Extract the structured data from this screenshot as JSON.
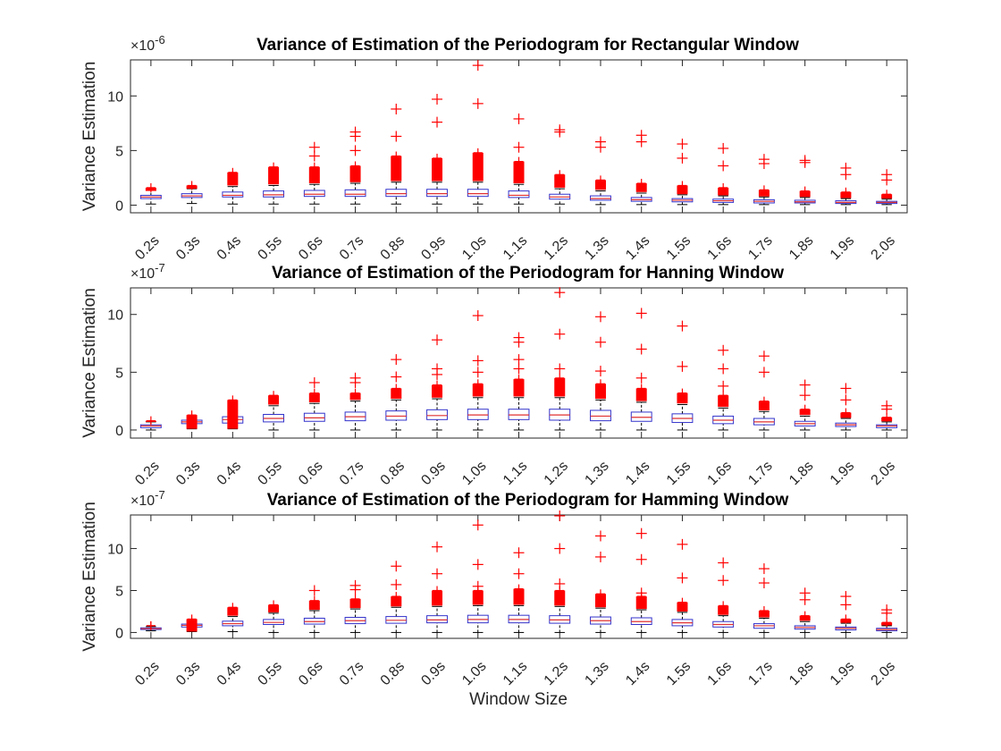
{
  "figure": {
    "xlabel": "Window Size"
  },
  "colors": {
    "box": "#3333cc",
    "median": "#e03030",
    "whisker": "#000000",
    "outlier": "#ff0000"
  },
  "chart_data": [
    {
      "type": "box",
      "title": "Variance of Estimation of the Periodogram for Rectangular Window",
      "ylabel": "Variance Estimation",
      "exponent_prefix": "×10",
      "exponent": "-6",
      "ylim": [
        -0.7,
        13.3
      ],
      "yticks": [
        0,
        5,
        10
      ],
      "categories": [
        "0.2s",
        "0.3s",
        "0.4s",
        "0.5s",
        "0.6s",
        "0.7s",
        "0.8s",
        "0.9s",
        "1.0s",
        "1.1s",
        "1.2s",
        "1.3s",
        "1.4s",
        "1.5s",
        "1.6s",
        "1.7s",
        "1.8s",
        "1.9s",
        "2.0s"
      ],
      "boxes": [
        {
          "low": 0.1,
          "q1": 0.6,
          "median": 0.75,
          "q3": 0.9,
          "high": 1.4,
          "outlier_top": 1.6,
          "outlier_bottom": 1.3,
          "extra": []
        },
        {
          "low": 0.15,
          "q1": 0.7,
          "median": 0.85,
          "q3": 1.05,
          "high": 1.5,
          "outlier_top": 1.8,
          "outlier_bottom": 1.5,
          "extra": []
        },
        {
          "low": 0.1,
          "q1": 0.75,
          "median": 0.9,
          "q3": 1.2,
          "high": 1.7,
          "outlier_top": 3.0,
          "outlier_bottom": 1.8,
          "extra": []
        },
        {
          "low": 0.1,
          "q1": 0.75,
          "median": 0.95,
          "q3": 1.3,
          "high": 1.8,
          "outlier_top": 3.5,
          "outlier_bottom": 1.9,
          "extra": []
        },
        {
          "low": 0.1,
          "q1": 0.8,
          "median": 1.0,
          "q3": 1.35,
          "high": 1.9,
          "outlier_top": 3.5,
          "outlier_bottom": 2.0,
          "extra": [
            5.3,
            4.5
          ]
        },
        {
          "low": 0.1,
          "q1": 0.8,
          "median": 1.0,
          "q3": 1.4,
          "high": 2.0,
          "outlier_top": 3.6,
          "outlier_bottom": 2.1,
          "extra": [
            6.7,
            6.3,
            5.0
          ]
        },
        {
          "low": 0.1,
          "q1": 0.8,
          "median": 1.05,
          "q3": 1.45,
          "high": 2.1,
          "outlier_top": 4.5,
          "outlier_bottom": 2.2,
          "extra": [
            8.8,
            6.3
          ]
        },
        {
          "low": 0.1,
          "q1": 0.8,
          "median": 1.05,
          "q3": 1.45,
          "high": 2.1,
          "outlier_top": 4.3,
          "outlier_bottom": 2.2,
          "extra": [
            9.7,
            7.6
          ]
        },
        {
          "low": 0.1,
          "q1": 0.8,
          "median": 1.05,
          "q3": 1.45,
          "high": 2.1,
          "outlier_top": 4.8,
          "outlier_bottom": 2.2,
          "extra": [
            12.8,
            9.3
          ]
        },
        {
          "low": 0.1,
          "q1": 0.7,
          "median": 0.9,
          "q3": 1.3,
          "high": 1.9,
          "outlier_top": 4.0,
          "outlier_bottom": 2.0,
          "extra": [
            7.9,
            5.3
          ]
        },
        {
          "low": 0.1,
          "q1": 0.55,
          "median": 0.75,
          "q3": 1.0,
          "high": 1.5,
          "outlier_top": 2.8,
          "outlier_bottom": 1.6,
          "extra": [
            6.9,
            6.7
          ]
        },
        {
          "low": 0.05,
          "q1": 0.45,
          "median": 0.6,
          "q3": 0.85,
          "high": 1.3,
          "outlier_top": 2.3,
          "outlier_bottom": 1.4,
          "extra": [
            5.8,
            5.3
          ]
        },
        {
          "low": 0.05,
          "q1": 0.35,
          "median": 0.5,
          "q3": 0.7,
          "high": 1.1,
          "outlier_top": 2.0,
          "outlier_bottom": 1.2,
          "extra": [
            6.4,
            5.8
          ]
        },
        {
          "low": 0.05,
          "q1": 0.3,
          "median": 0.45,
          "q3": 0.6,
          "high": 0.95,
          "outlier_top": 1.8,
          "outlier_bottom": 1.0,
          "extra": [
            5.6,
            4.3
          ]
        },
        {
          "low": 0.05,
          "q1": 0.25,
          "median": 0.4,
          "q3": 0.55,
          "high": 0.85,
          "outlier_top": 1.6,
          "outlier_bottom": 0.9,
          "extra": [
            5.2,
            3.6
          ]
        },
        {
          "low": 0.05,
          "q1": 0.2,
          "median": 0.35,
          "q3": 0.5,
          "high": 0.75,
          "outlier_top": 1.4,
          "outlier_bottom": 0.8,
          "extra": [
            4.2,
            3.8
          ]
        },
        {
          "low": 0.05,
          "q1": 0.2,
          "median": 0.3,
          "q3": 0.45,
          "high": 0.7,
          "outlier_top": 1.3,
          "outlier_bottom": 0.75,
          "extra": [
            4.1,
            3.9
          ]
        },
        {
          "low": 0.05,
          "q1": 0.15,
          "median": 0.25,
          "q3": 0.4,
          "high": 0.6,
          "outlier_top": 1.2,
          "outlier_bottom": 0.65,
          "extra": [
            3.4,
            2.8
          ]
        },
        {
          "low": 0.05,
          "q1": 0.15,
          "median": 0.25,
          "q3": 0.35,
          "high": 0.55,
          "outlier_top": 1.0,
          "outlier_bottom": 0.6,
          "extra": [
            2.8,
            2.3
          ]
        }
      ]
    },
    {
      "type": "box",
      "title": "Variance of Estimation of the Periodogram for Hanning Window",
      "ylabel": "Variance Estimation",
      "exponent_prefix": "×10",
      "exponent": "-7",
      "ylim": [
        -0.7,
        12.3
      ],
      "yticks": [
        0,
        5,
        10
      ],
      "categories": [
        "0.2s",
        "0.3s",
        "0.4s",
        "0.5s",
        "0.6s",
        "0.7s",
        "0.8s",
        "0.9s",
        "1.0s",
        "1.1s",
        "1.2s",
        "1.3s",
        "1.4s",
        "1.5s",
        "1.6s",
        "1.7s",
        "1.8s",
        "1.9s",
        "2.0s"
      ],
      "boxes": [
        {
          "low": 0.0,
          "q1": 0.2,
          "median": 0.35,
          "q3": 0.45,
          "high": 0.7,
          "outlier_top": 0.8,
          "outlier_bottom": 0.7,
          "extra": []
        },
        {
          "low": 0.1,
          "q1": 0.55,
          "median": 0.7,
          "q3": 0.85,
          "high": 1.1,
          "outlier_top": 1.3,
          "outlier_bottom": 0.1,
          "extra": []
        },
        {
          "low": 0.1,
          "q1": 0.6,
          "median": 0.9,
          "q3": 1.15,
          "high": 1.7,
          "outlier_top": 2.6,
          "outlier_bottom": 0.1,
          "extra": []
        },
        {
          "low": 0.0,
          "q1": 0.7,
          "median": 1.0,
          "q3": 1.35,
          "high": 2.1,
          "outlier_top": 3.0,
          "outlier_bottom": 2.2,
          "extra": []
        },
        {
          "low": 0.0,
          "q1": 0.75,
          "median": 1.05,
          "q3": 1.45,
          "high": 2.3,
          "outlier_top": 3.2,
          "outlier_bottom": 2.4,
          "extra": [
            4.1
          ]
        },
        {
          "low": 0.0,
          "q1": 0.8,
          "median": 1.15,
          "q3": 1.55,
          "high": 2.5,
          "outlier_top": 3.2,
          "outlier_bottom": 2.6,
          "extra": [
            4.5,
            4.1
          ]
        },
        {
          "low": 0.0,
          "q1": 0.85,
          "median": 1.2,
          "q3": 1.65,
          "high": 2.6,
          "outlier_top": 3.6,
          "outlier_bottom": 2.7,
          "extra": [
            6.1,
            4.6
          ]
        },
        {
          "low": 0.0,
          "q1": 0.9,
          "median": 1.25,
          "q3": 1.75,
          "high": 2.7,
          "outlier_top": 3.9,
          "outlier_bottom": 2.8,
          "extra": [
            7.8,
            5.3,
            4.8
          ]
        },
        {
          "low": 0.0,
          "q1": 0.9,
          "median": 1.3,
          "q3": 1.8,
          "high": 2.8,
          "outlier_top": 4.0,
          "outlier_bottom": 2.9,
          "extra": [
            9.9,
            6.0,
            5.0
          ]
        },
        {
          "low": 0.0,
          "q1": 0.9,
          "median": 1.3,
          "q3": 1.8,
          "high": 2.8,
          "outlier_top": 4.4,
          "outlier_bottom": 2.9,
          "extra": [
            8.0,
            7.6,
            6.1,
            5.3
          ]
        },
        {
          "low": 0.0,
          "q1": 0.85,
          "median": 1.3,
          "q3": 1.8,
          "high": 2.8,
          "outlier_top": 4.5,
          "outlier_bottom": 2.9,
          "extra": [
            11.9,
            8.3,
            5.3
          ]
        },
        {
          "low": 0.0,
          "q1": 0.8,
          "median": 1.2,
          "q3": 1.7,
          "high": 2.6,
          "outlier_top": 4.0,
          "outlier_bottom": 2.7,
          "extra": [
            9.8,
            7.6,
            5.1
          ]
        },
        {
          "low": 0.0,
          "q1": 0.75,
          "median": 1.1,
          "q3": 1.55,
          "high": 2.4,
          "outlier_top": 3.6,
          "outlier_bottom": 2.5,
          "extra": [
            10.1,
            7.0,
            4.5
          ]
        },
        {
          "low": 0.0,
          "q1": 0.65,
          "median": 1.0,
          "q3": 1.4,
          "high": 2.2,
          "outlier_top": 3.2,
          "outlier_bottom": 2.3,
          "extra": [
            9.0,
            5.5
          ]
        },
        {
          "low": 0.0,
          "q1": 0.55,
          "median": 0.85,
          "q3": 1.2,
          "high": 1.9,
          "outlier_top": 3.0,
          "outlier_bottom": 2.0,
          "extra": [
            6.9,
            5.3,
            3.8
          ]
        },
        {
          "low": 0.0,
          "q1": 0.45,
          "median": 0.7,
          "q3": 1.0,
          "high": 1.6,
          "outlier_top": 2.5,
          "outlier_bottom": 1.7,
          "extra": [
            6.4,
            5.0
          ]
        },
        {
          "low": 0.0,
          "q1": 0.35,
          "median": 0.55,
          "q3": 0.75,
          "high": 1.2,
          "outlier_top": 1.8,
          "outlier_bottom": 1.3,
          "extra": [
            3.9,
            3.0
          ]
        },
        {
          "low": 0.0,
          "q1": 0.3,
          "median": 0.45,
          "q3": 0.6,
          "high": 1.0,
          "outlier_top": 1.5,
          "outlier_bottom": 1.05,
          "extra": [
            3.6,
            2.6
          ]
        },
        {
          "low": 0.0,
          "q1": 0.2,
          "median": 0.35,
          "q3": 0.45,
          "high": 0.7,
          "outlier_top": 1.1,
          "outlier_bottom": 0.75,
          "extra": [
            2.1,
            1.8
          ]
        }
      ]
    },
    {
      "type": "box",
      "title": "Variance of Estimation of the Periodogram for Hamming Window",
      "ylabel": "Variance Estimation",
      "exponent_prefix": "×10",
      "exponent": "-7",
      "ylim": [
        -0.7,
        14.0
      ],
      "yticks": [
        0,
        5,
        10
      ],
      "categories": [
        "0.2s",
        "0.3s",
        "0.4s",
        "0.5s",
        "0.6s",
        "0.7s",
        "0.8s",
        "0.9s",
        "1.0s",
        "1.1s",
        "1.2s",
        "1.3s",
        "1.4s",
        "1.5s",
        "1.6s",
        "1.7s",
        "1.8s",
        "1.9s",
        "2.0s"
      ],
      "boxes": [
        {
          "low": 0.2,
          "q1": 0.35,
          "median": 0.45,
          "q3": 0.55,
          "high": 0.7,
          "outlier_top": 0.8,
          "outlier_bottom": 0.75,
          "extra": []
        },
        {
          "low": 0.1,
          "q1": 0.65,
          "median": 0.85,
          "q3": 1.0,
          "high": 1.4,
          "outlier_top": 1.6,
          "outlier_bottom": 0.1,
          "extra": []
        },
        {
          "low": 0.1,
          "q1": 0.8,
          "median": 1.05,
          "q3": 1.35,
          "high": 1.9,
          "outlier_top": 3.0,
          "outlier_bottom": 2.0,
          "extra": []
        },
        {
          "low": 0.0,
          "q1": 0.95,
          "median": 1.2,
          "q3": 1.55,
          "high": 2.3,
          "outlier_top": 3.3,
          "outlier_bottom": 2.4,
          "extra": []
        },
        {
          "low": 0.0,
          "q1": 1.0,
          "median": 1.3,
          "q3": 1.7,
          "high": 2.6,
          "outlier_top": 3.8,
          "outlier_bottom": 2.7,
          "extra": [
            5.0
          ]
        },
        {
          "low": 0.0,
          "q1": 1.05,
          "median": 1.4,
          "q3": 1.8,
          "high": 2.8,
          "outlier_top": 4.0,
          "outlier_bottom": 2.9,
          "extra": [
            5.6,
            5.1
          ]
        },
        {
          "low": 0.0,
          "q1": 1.1,
          "median": 1.45,
          "q3": 1.9,
          "high": 3.0,
          "outlier_top": 4.3,
          "outlier_bottom": 3.1,
          "extra": [
            7.9,
            5.7
          ]
        },
        {
          "low": 0.0,
          "q1": 1.15,
          "median": 1.5,
          "q3": 2.0,
          "high": 3.1,
          "outlier_top": 5.0,
          "outlier_bottom": 3.2,
          "extra": [
            10.2,
            7.0
          ]
        },
        {
          "low": 0.0,
          "q1": 1.15,
          "median": 1.55,
          "q3": 2.05,
          "high": 3.2,
          "outlier_top": 5.0,
          "outlier_bottom": 3.3,
          "extra": [
            12.8,
            8.1,
            5.5
          ]
        },
        {
          "low": 0.0,
          "q1": 1.15,
          "median": 1.55,
          "q3": 2.05,
          "high": 3.2,
          "outlier_top": 5.2,
          "outlier_bottom": 3.3,
          "extra": [
            9.5,
            7.0
          ]
        },
        {
          "low": 0.0,
          "q1": 1.1,
          "median": 1.5,
          "q3": 2.0,
          "high": 3.1,
          "outlier_top": 5.0,
          "outlier_bottom": 3.2,
          "extra": [
            13.9,
            10.0,
            5.8
          ]
        },
        {
          "low": 0.0,
          "q1": 1.0,
          "median": 1.4,
          "q3": 1.85,
          "high": 2.9,
          "outlier_top": 4.6,
          "outlier_bottom": 3.0,
          "extra": [
            11.5,
            9.0
          ]
        },
        {
          "low": 0.0,
          "q1": 0.95,
          "median": 1.3,
          "q3": 1.75,
          "high": 2.7,
          "outlier_top": 4.3,
          "outlier_bottom": 2.8,
          "extra": [
            11.8,
            8.7,
            4.7
          ]
        },
        {
          "low": 0.0,
          "q1": 0.8,
          "median": 1.15,
          "q3": 1.55,
          "high": 2.4,
          "outlier_top": 3.6,
          "outlier_bottom": 2.5,
          "extra": [
            10.5,
            6.5
          ]
        },
        {
          "low": 0.0,
          "q1": 0.65,
          "median": 0.95,
          "q3": 1.3,
          "high": 2.0,
          "outlier_top": 3.2,
          "outlier_bottom": 2.1,
          "extra": [
            8.3,
            6.2
          ]
        },
        {
          "low": 0.0,
          "q1": 0.5,
          "median": 0.8,
          "q3": 1.05,
          "high": 1.7,
          "outlier_top": 2.6,
          "outlier_bottom": 1.8,
          "extra": [
            7.6,
            5.9
          ]
        },
        {
          "low": 0.0,
          "q1": 0.4,
          "median": 0.6,
          "q3": 0.8,
          "high": 1.3,
          "outlier_top": 2.0,
          "outlier_bottom": 1.4,
          "extra": [
            4.7,
            3.9
          ]
        },
        {
          "low": 0.0,
          "q1": 0.3,
          "median": 0.5,
          "q3": 0.65,
          "high": 1.1,
          "outlier_top": 1.6,
          "outlier_bottom": 1.15,
          "extra": [
            4.3,
            3.3
          ]
        },
        {
          "low": 0.0,
          "q1": 0.2,
          "median": 0.35,
          "q3": 0.5,
          "high": 0.8,
          "outlier_top": 1.2,
          "outlier_bottom": 0.85,
          "extra": [
            2.7,
            2.3
          ]
        }
      ]
    }
  ]
}
